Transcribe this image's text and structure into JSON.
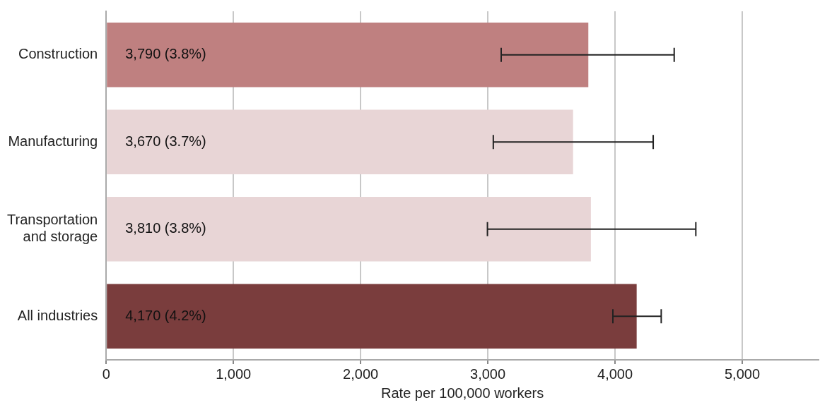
{
  "chart_data": {
    "type": "bar",
    "orientation": "horizontal",
    "xlabel": "Rate per 100,000 workers",
    "categories": [
      "Construction",
      "Manufacturing",
      "Transportation\nand storage",
      "All industries"
    ],
    "values": [
      3790,
      3670,
      3810,
      4170
    ],
    "colors": [
      "#bf8080",
      "#e8d5d6",
      "#e8d5d6",
      "#7a3d3d"
    ],
    "errors": [
      [
        3105,
        4465
      ],
      [
        3043,
        4300
      ],
      [
        2997,
        4635
      ],
      [
        3983,
        4363
      ]
    ],
    "value_labels": [
      "3,790 (3.8%)",
      "3,670 (3.7%)",
      "3,810 (3.8%)",
      "4,170 (4.2%)"
    ],
    "xlim": [
      0,
      5600
    ],
    "xticks": [
      {
        "value": 0,
        "label": "0"
      },
      {
        "value": 1000,
        "label": "1,000"
      },
      {
        "value": 2000,
        "label": "2,000"
      },
      {
        "value": 3000,
        "label": "3,000"
      },
      {
        "value": 4000,
        "label": "4,000"
      },
      {
        "value": 5000,
        "label": "5,000"
      }
    ],
    "grid": "x",
    "legend": false
  }
}
